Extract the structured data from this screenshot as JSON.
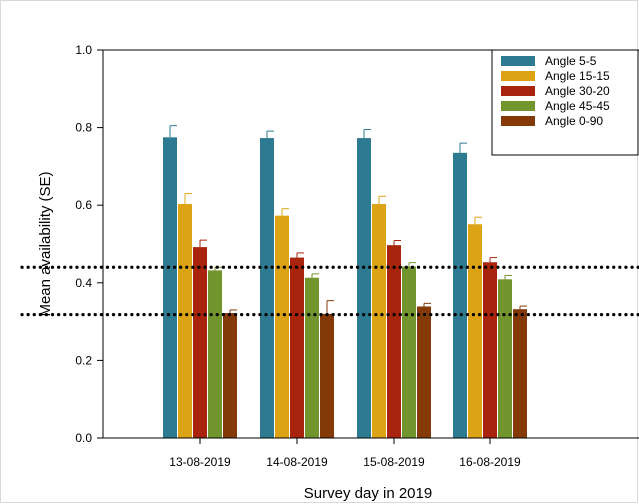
{
  "chart_data": {
    "type": "bar",
    "title": "",
    "xlabel": "Survey day in 2019",
    "ylabel": "Mean availability (SE)",
    "ylim": [
      0,
      1.0
    ],
    "yticks": [
      "0.0",
      "0.2",
      "0.4",
      "0.6",
      "0.8",
      "1.0"
    ],
    "categories": [
      "13-08-2019",
      "14-08-2019",
      "15-08-2019",
      "16-08-2019"
    ],
    "legend_position": "top-right",
    "series": [
      {
        "name": "Angle 5-5",
        "color": "#2e7a91",
        "values": [
          0.775,
          0.773,
          0.773,
          0.735
        ],
        "errors": [
          0.03,
          0.018,
          0.022,
          0.025
        ]
      },
      {
        "name": "Angle 15-15",
        "color": "#dca414",
        "values": [
          0.603,
          0.573,
          0.603,
          0.551
        ],
        "errors": [
          0.027,
          0.018,
          0.02,
          0.018
        ]
      },
      {
        "name": "Angle 30-20",
        "color": "#a8240c",
        "values": [
          0.492,
          0.465,
          0.497,
          0.453
        ],
        "errors": [
          0.018,
          0.012,
          0.012,
          0.012
        ]
      },
      {
        "name": "Angle 45-45",
        "color": "#72952d",
        "values": [
          0.432,
          0.413,
          0.442,
          0.409
        ],
        "errors": [
          0.008,
          0.01,
          0.01,
          0.01
        ]
      },
      {
        "name": "Angle 0-90",
        "color": "#843909",
        "values": [
          0.322,
          0.32,
          0.339,
          0.332
        ],
        "errors": [
          0.008,
          0.034,
          0.008,
          0.008
        ]
      }
    ],
    "reference_lines": [
      0.44,
      0.318
    ]
  }
}
